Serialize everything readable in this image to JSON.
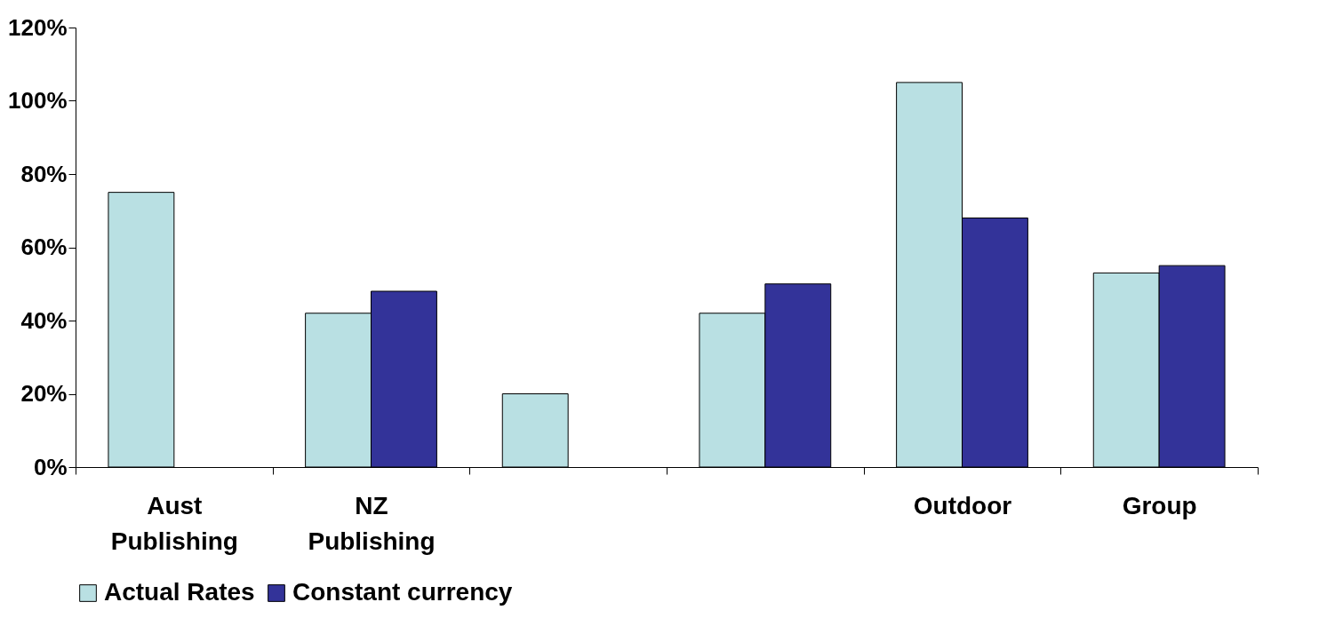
{
  "chart_data": {
    "type": "bar",
    "categories": [
      "Aust Publishing",
      "NZ Publishing",
      null,
      null,
      "Outdoor",
      "Group"
    ],
    "series": [
      {
        "name": "Actual Rates",
        "color": "#b9e0e3",
        "values": [
          75,
          42,
          20,
          42,
          105,
          53
        ]
      },
      {
        "name": "Constant currency",
        "color": "#333399",
        "values": [
          null,
          48,
          null,
          50,
          68,
          55
        ]
      }
    ],
    "ylim": [
      0,
      120
    ],
    "yticks": [
      {
        "value": 0,
        "label": "0%"
      },
      {
        "value": 20,
        "label": "20%"
      },
      {
        "value": 40,
        "label": "40%"
      },
      {
        "value": 60,
        "label": "60%"
      },
      {
        "value": 80,
        "label": "80%"
      },
      {
        "value": 100,
        "label": "100%"
      },
      {
        "value": 120,
        "label": "120%"
      }
    ],
    "grid": false,
    "legend": "bottom"
  }
}
